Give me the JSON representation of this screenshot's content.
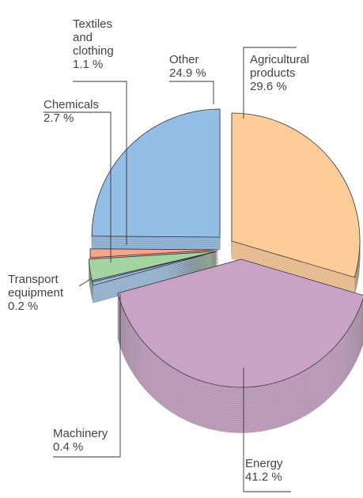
{
  "chart_data": {
    "type": "pie",
    "categories": [
      "Agricultural products",
      "Energy",
      "Machinery",
      "Transport equipment",
      "Chemicals",
      "Textiles and clothing",
      "Other"
    ],
    "values": [
      29.6,
      41.2,
      0.4,
      0.2,
      2.7,
      1.1,
      24.9
    ],
    "value_labels": [
      "29.6 %",
      "41.2 %",
      "0.4 %",
      "0.2 %",
      "2.7 %",
      "1.1 %",
      "24.9 %"
    ],
    "colors": [
      "#fdcc98",
      "#c8a3c6",
      "#9fbfe0",
      "#7ea4cc",
      "#a3d3a0",
      "#f4a58e",
      "#95bee6"
    ]
  }
}
